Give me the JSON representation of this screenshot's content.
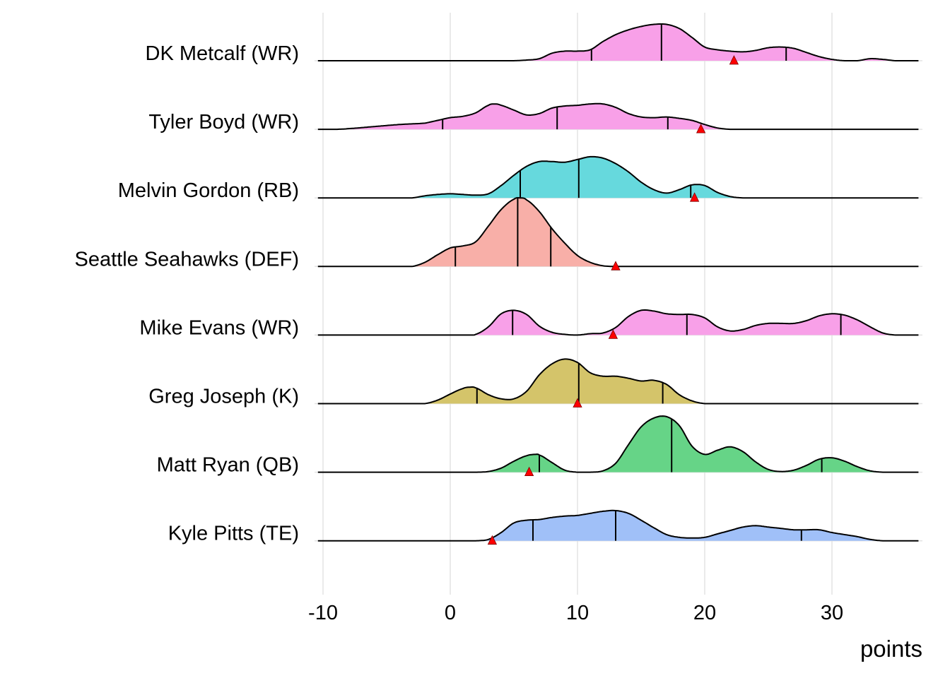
{
  "chart_data": {
    "type": "ridgeline",
    "title": "",
    "xlabel": "points",
    "ylabel": "",
    "xlim": [
      -10.4,
      36.8
    ],
    "x_ticks": [
      -10,
      0,
      10,
      20,
      30
    ],
    "x_tick_labels": [
      "-10",
      "0",
      "10",
      "20",
      "30"
    ],
    "grid": "vertical major gridlines, light grey",
    "legend": "none",
    "marker_description": "red triangle marks the actual points scored; vertical lines mark quantiles",
    "height_unit": "density height relative to row spacing",
    "series": [
      {
        "name": "DK Metcalf (WR)",
        "color": "#F8A0E8",
        "quantiles": [
          11.1,
          16.6,
          26.4
        ],
        "actual": 22.3,
        "density": [
          [
            -10.4,
            0
          ],
          [
            5,
            0
          ],
          [
            6,
            0.01
          ],
          [
            7,
            0.03
          ],
          [
            8,
            0.11
          ],
          [
            9,
            0.14
          ],
          [
            10,
            0.14
          ],
          [
            11,
            0.16
          ],
          [
            12,
            0.28
          ],
          [
            13,
            0.38
          ],
          [
            14,
            0.45
          ],
          [
            15,
            0.5
          ],
          [
            16,
            0.53
          ],
          [
            17,
            0.53
          ],
          [
            18,
            0.47
          ],
          [
            19,
            0.34
          ],
          [
            20,
            0.2
          ],
          [
            21,
            0.16
          ],
          [
            22,
            0.14
          ],
          [
            23,
            0.13
          ],
          [
            24,
            0.15
          ],
          [
            25,
            0.19
          ],
          [
            26,
            0.2
          ],
          [
            27,
            0.18
          ],
          [
            28,
            0.12
          ],
          [
            29,
            0.06
          ],
          [
            30,
            0.02
          ],
          [
            31,
            0
          ],
          [
            32,
            0
          ],
          [
            33,
            0.03
          ],
          [
            34,
            0.02
          ],
          [
            35,
            0
          ],
          [
            36.8,
            0
          ]
        ]
      },
      {
        "name": "Tyler Boyd (WR)",
        "color": "#F8A0E8",
        "quantiles": [
          -0.6,
          8.4,
          17.1
        ],
        "actual": 19.7,
        "density": [
          [
            -10.4,
            0
          ],
          [
            -9,
            0
          ],
          [
            -8,
            0.01
          ],
          [
            -6,
            0.04
          ],
          [
            -4,
            0.07
          ],
          [
            -2,
            0.09
          ],
          [
            -1,
            0.13
          ],
          [
            0,
            0.17
          ],
          [
            1,
            0.19
          ],
          [
            2,
            0.24
          ],
          [
            3,
            0.35
          ],
          [
            3.5,
            0.37
          ],
          [
            4,
            0.35
          ],
          [
            5,
            0.28
          ],
          [
            6,
            0.21
          ],
          [
            7,
            0.23
          ],
          [
            8,
            0.31
          ],
          [
            9,
            0.34
          ],
          [
            10,
            0.35
          ],
          [
            11,
            0.37
          ],
          [
            12,
            0.37
          ],
          [
            13,
            0.32
          ],
          [
            14,
            0.23
          ],
          [
            15,
            0.18
          ],
          [
            16,
            0.17
          ],
          [
            17,
            0.18
          ],
          [
            18,
            0.16
          ],
          [
            19,
            0.13
          ],
          [
            20,
            0.07
          ],
          [
            21,
            0.02
          ],
          [
            22,
            0
          ],
          [
            36.8,
            0
          ]
        ]
      },
      {
        "name": "Melvin Gordon (RB)",
        "color": "#66D9DD",
        "quantiles": [
          5.5,
          10.1,
          18.9
        ],
        "actual": 19.2,
        "density": [
          [
            -10.4,
            0
          ],
          [
            -3,
            0
          ],
          [
            -2,
            0.03
          ],
          [
            -1,
            0.05
          ],
          [
            0,
            0.06
          ],
          [
            1,
            0.05
          ],
          [
            2,
            0.04
          ],
          [
            3,
            0.06
          ],
          [
            4,
            0.18
          ],
          [
            5,
            0.33
          ],
          [
            6,
            0.46
          ],
          [
            7,
            0.53
          ],
          [
            8,
            0.53
          ],
          [
            9,
            0.52
          ],
          [
            10,
            0.56
          ],
          [
            11,
            0.6
          ],
          [
            12,
            0.58
          ],
          [
            13,
            0.5
          ],
          [
            14,
            0.38
          ],
          [
            15,
            0.23
          ],
          [
            16,
            0.12
          ],
          [
            17,
            0.07
          ],
          [
            18,
            0.12
          ],
          [
            19,
            0.19
          ],
          [
            20,
            0.18
          ],
          [
            21,
            0.08
          ],
          [
            22,
            0.02
          ],
          [
            23,
            0
          ],
          [
            36.8,
            0
          ]
        ]
      },
      {
        "name": "Seattle Seahawks (DEF)",
        "color": "#F8AFA8",
        "quantiles": [
          0.4,
          5.3,
          7.9
        ],
        "actual": 13.0,
        "density": [
          [
            -10.4,
            0
          ],
          [
            -3,
            0
          ],
          [
            -2,
            0.06
          ],
          [
            -1,
            0.17
          ],
          [
            0,
            0.27
          ],
          [
            1,
            0.3
          ],
          [
            2,
            0.36
          ],
          [
            3,
            0.59
          ],
          [
            4,
            0.83
          ],
          [
            5,
            0.98
          ],
          [
            5.5,
            1.0
          ],
          [
            6,
            0.97
          ],
          [
            7,
            0.8
          ],
          [
            8,
            0.55
          ],
          [
            9,
            0.34
          ],
          [
            10,
            0.16
          ],
          [
            11,
            0.06
          ],
          [
            12,
            0.01
          ],
          [
            13,
            0
          ],
          [
            36.8,
            0
          ]
        ]
      },
      {
        "name": "Mike Evans (WR)",
        "color": "#F8A0E8",
        "quantiles": [
          4.9,
          18.6,
          30.7
        ],
        "actual": 12.8,
        "density": [
          [
            -10.4,
            0
          ],
          [
            1.5,
            0
          ],
          [
            2,
            0.01
          ],
          [
            3,
            0.12
          ],
          [
            4,
            0.31
          ],
          [
            5,
            0.36
          ],
          [
            6,
            0.3
          ],
          [
            7,
            0.13
          ],
          [
            8,
            0.04
          ],
          [
            9,
            0.01
          ],
          [
            10,
            0
          ],
          [
            11,
            0.02
          ],
          [
            12,
            0.03
          ],
          [
            13,
            0.11
          ],
          [
            14,
            0.27
          ],
          [
            15,
            0.36
          ],
          [
            16,
            0.35
          ],
          [
            17,
            0.31
          ],
          [
            18,
            0.3
          ],
          [
            19,
            0.3
          ],
          [
            20,
            0.25
          ],
          [
            21,
            0.12
          ],
          [
            22,
            0.06
          ],
          [
            23,
            0.08
          ],
          [
            24,
            0.14
          ],
          [
            25,
            0.17
          ],
          [
            26,
            0.17
          ],
          [
            27,
            0.17
          ],
          [
            28,
            0.21
          ],
          [
            29,
            0.28
          ],
          [
            30,
            0.31
          ],
          [
            31,
            0.29
          ],
          [
            32,
            0.22
          ],
          [
            33,
            0.12
          ],
          [
            34,
            0.03
          ],
          [
            35,
            0
          ],
          [
            36.8,
            0
          ]
        ]
      },
      {
        "name": "Greg Joseph (K)",
        "color": "#D4C46A",
        "quantiles": [
          2.1,
          10.1,
          16.7
        ],
        "actual": 10.0,
        "density": [
          [
            -10.4,
            0
          ],
          [
            -2,
            0
          ],
          [
            -1,
            0.05
          ],
          [
            0,
            0.14
          ],
          [
            1,
            0.22
          ],
          [
            1.5,
            0.24
          ],
          [
            2,
            0.23
          ],
          [
            3,
            0.13
          ],
          [
            4,
            0.07
          ],
          [
            5,
            0.07
          ],
          [
            6,
            0.18
          ],
          [
            7,
            0.42
          ],
          [
            8,
            0.58
          ],
          [
            9,
            0.65
          ],
          [
            10,
            0.6
          ],
          [
            11,
            0.45
          ],
          [
            12,
            0.4
          ],
          [
            13,
            0.4
          ],
          [
            14,
            0.37
          ],
          [
            15,
            0.33
          ],
          [
            16,
            0.34
          ],
          [
            17,
            0.28
          ],
          [
            18,
            0.13
          ],
          [
            19,
            0.04
          ],
          [
            20,
            0
          ],
          [
            36.8,
            0
          ]
        ]
      },
      {
        "name": "Matt Ryan (QB)",
        "color": "#66D487",
        "quantiles": [
          7.0,
          17.4,
          29.2
        ],
        "actual": 6.2,
        "density": [
          [
            -10.4,
            0
          ],
          [
            2,
            0
          ],
          [
            3,
            0.01
          ],
          [
            4,
            0.06
          ],
          [
            5,
            0.16
          ],
          [
            6,
            0.24
          ],
          [
            6.7,
            0.26
          ],
          [
            7,
            0.25
          ],
          [
            8,
            0.14
          ],
          [
            9,
            0.03
          ],
          [
            10,
            0
          ],
          [
            11,
            0
          ],
          [
            12,
            0.02
          ],
          [
            13,
            0.13
          ],
          [
            14,
            0.4
          ],
          [
            15,
            0.66
          ],
          [
            16,
            0.79
          ],
          [
            17,
            0.81
          ],
          [
            18,
            0.68
          ],
          [
            19,
            0.38
          ],
          [
            20,
            0.26
          ],
          [
            21,
            0.32
          ],
          [
            22,
            0.37
          ],
          [
            23,
            0.3
          ],
          [
            24,
            0.15
          ],
          [
            25,
            0.04
          ],
          [
            26,
            0.01
          ],
          [
            27,
            0.03
          ],
          [
            28,
            0.1
          ],
          [
            29,
            0.19
          ],
          [
            30,
            0.21
          ],
          [
            31,
            0.16
          ],
          [
            32,
            0.08
          ],
          [
            33,
            0.02
          ],
          [
            34,
            0
          ],
          [
            36.8,
            0
          ]
        ]
      },
      {
        "name": "Kyle Pitts (TE)",
        "color": "#A0C0F8",
        "quantiles": [
          6.5,
          13.0,
          27.6
        ],
        "actual": 3.3,
        "density": [
          [
            -10.4,
            0
          ],
          [
            2,
            0
          ],
          [
            3,
            0.02
          ],
          [
            4,
            0.12
          ],
          [
            5,
            0.26
          ],
          [
            6,
            0.3
          ],
          [
            7,
            0.31
          ],
          [
            8,
            0.34
          ],
          [
            9,
            0.36
          ],
          [
            10,
            0.37
          ],
          [
            11,
            0.4
          ],
          [
            12,
            0.43
          ],
          [
            13,
            0.44
          ],
          [
            14,
            0.4
          ],
          [
            15,
            0.3
          ],
          [
            16,
            0.19
          ],
          [
            17,
            0.09
          ],
          [
            18,
            0.05
          ],
          [
            19,
            0.04
          ],
          [
            20,
            0.05
          ],
          [
            21,
            0.1
          ],
          [
            22,
            0.15
          ],
          [
            23,
            0.2
          ],
          [
            24,
            0.22
          ],
          [
            25,
            0.2
          ],
          [
            26,
            0.18
          ],
          [
            27,
            0.16
          ],
          [
            28,
            0.16
          ],
          [
            29,
            0.16
          ],
          [
            30,
            0.12
          ],
          [
            31,
            0.09
          ],
          [
            32,
            0.06
          ],
          [
            33,
            0.02
          ],
          [
            34,
            0
          ],
          [
            36.8,
            0
          ]
        ]
      }
    ]
  }
}
